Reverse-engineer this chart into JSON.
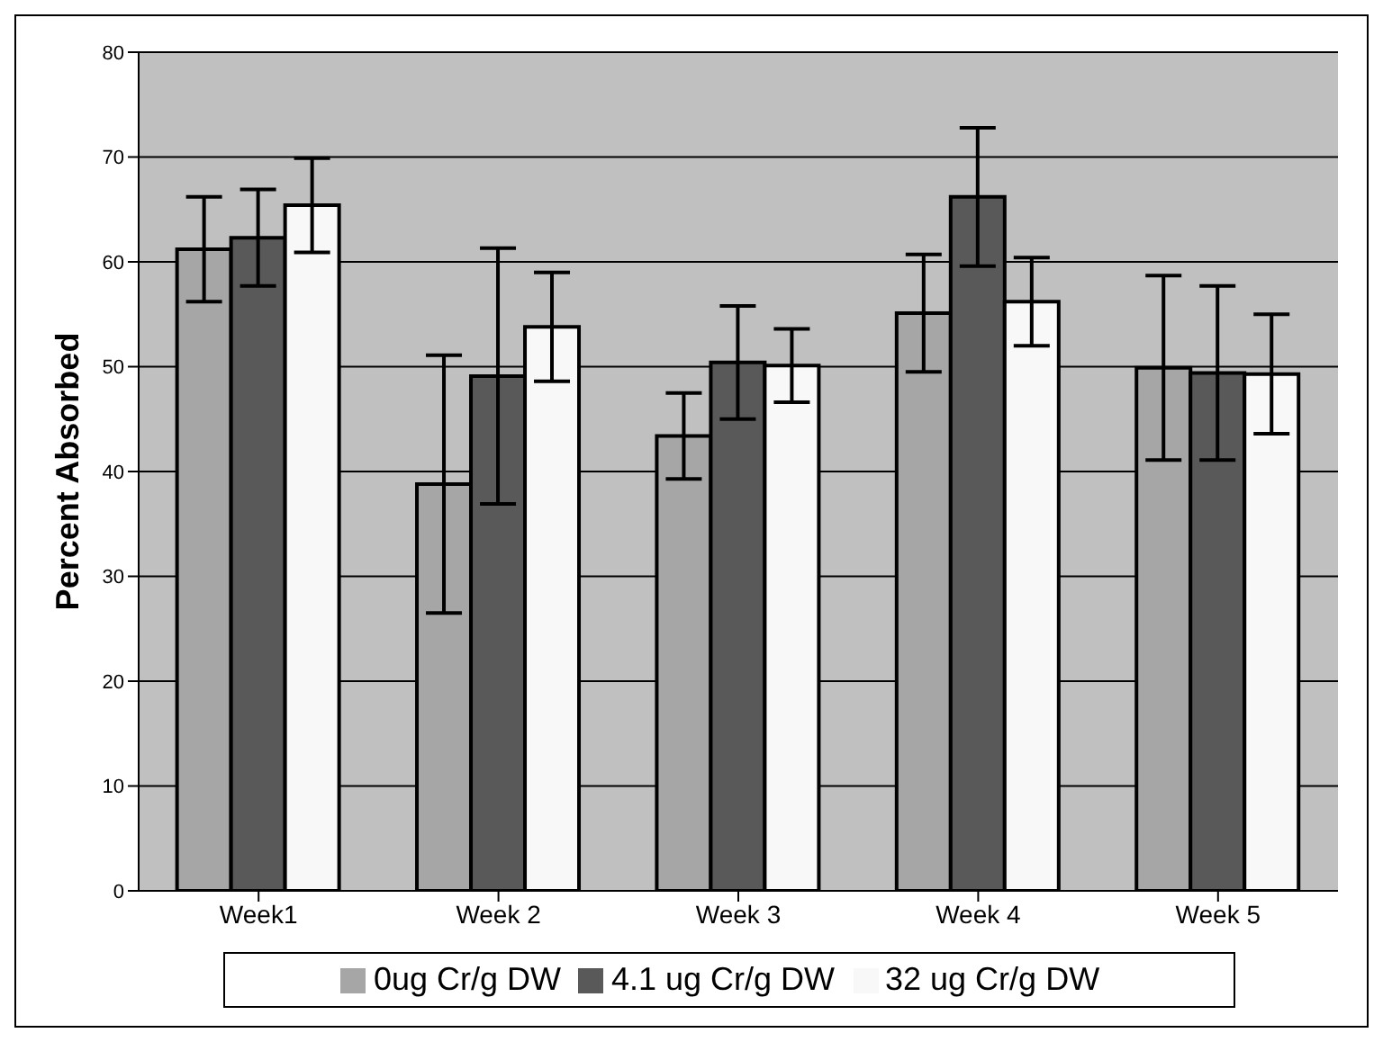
{
  "chart_data": {
    "type": "bar",
    "ylabel": "Percent Absorbed",
    "categories": [
      "Week1",
      "Week 2",
      "Week 3",
      "Week 4",
      "Week 5"
    ],
    "series": [
      {
        "name": "0ug Cr/g DW",
        "color": "#a6a6a6",
        "values": [
          61.2,
          38.8,
          43.4,
          55.1,
          49.9
        ],
        "errors": [
          5,
          12.3,
          4.1,
          5.6,
          8.8
        ]
      },
      {
        "name": "4.1 ug Cr/g DW",
        "color": "#595959",
        "values": [
          62.3,
          49.1,
          50.4,
          66.2,
          49.4
        ],
        "errors": [
          4.6,
          12.2,
          5.4,
          6.6,
          8.3
        ]
      },
      {
        "name": "32 ug Cr/g DW",
        "color": "#f8f8f8",
        "values": [
          65.4,
          53.8,
          50.1,
          56.2,
          49.3
        ],
        "errors": [
          4.5,
          5.2,
          3.5,
          4.2,
          5.7
        ]
      }
    ],
    "ylim": [
      0,
      80
    ],
    "yticks": [
      0,
      10,
      20,
      30,
      40,
      50,
      60,
      70,
      80
    ],
    "grid": "y",
    "legend": "bottom"
  }
}
